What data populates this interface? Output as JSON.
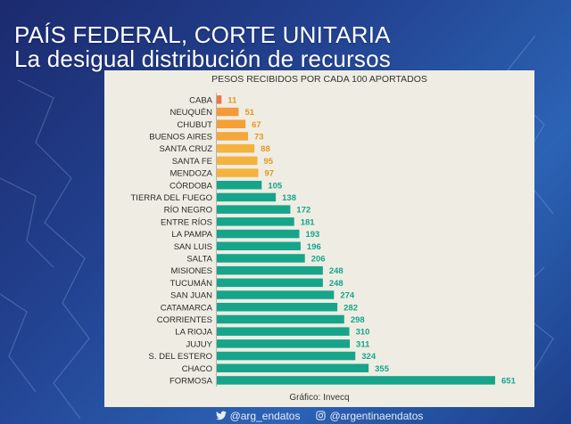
{
  "header": {
    "title": "PAÍS FEDERAL, CORTE UNITARIA",
    "subtitle": "La desigual distribución de recursos"
  },
  "chart_data": {
    "type": "bar",
    "orientation": "horizontal",
    "title": "PESOS RECIBIDOS POR CADA 100 APORTADOS",
    "categories": [
      "CABA",
      "NEUQUÉN",
      "CHUBUT",
      "BUENOS AIRES",
      "SANTA CRUZ",
      "SANTA FE",
      "MENDOZA",
      "CÓRDOBA",
      "TIERRA DEL FUEGO",
      "RÍO NEGRO",
      "ENTRE RÍOS",
      "LA PAMPA",
      "SAN LUIS",
      "SALTA",
      "MISIONES",
      "TUCUMÁN",
      "SAN JUAN",
      "CATAMARCA",
      "CORRIENTES",
      "LA RIOJA",
      "JUJUY",
      "S. DEL ESTERO",
      "CHACO",
      "FORMOSA"
    ],
    "values": [
      11,
      51,
      67,
      73,
      88,
      95,
      97,
      105,
      138,
      172,
      181,
      193,
      196,
      206,
      248,
      248,
      274,
      282,
      298,
      310,
      311,
      324,
      355,
      651
    ],
    "value_labels": [
      "11",
      "51",
      "67",
      "73",
      "88",
      "95",
      "97",
      "105",
      "138",
      "172",
      "181",
      "193",
      "196",
      "206",
      "248",
      "248",
      "274",
      "282",
      "298",
      "310",
      "311",
      "324",
      "355",
      "651"
    ],
    "colors": {
      "below_100": [
        "#e8774a",
        "#f49a3a",
        "#f4a034",
        "#f4a73a",
        "#f6b23e",
        "#f6b23e",
        "#f6b23e"
      ],
      "above_100": "#16a58a",
      "label_below_100": "#e8961f",
      "label_above_100": "#16a58a"
    },
    "grid": false,
    "source": "Gráfico: Invecq"
  },
  "footer": {
    "twitter": "@arg_endatos",
    "instagram": "@argentinaendatos"
  }
}
